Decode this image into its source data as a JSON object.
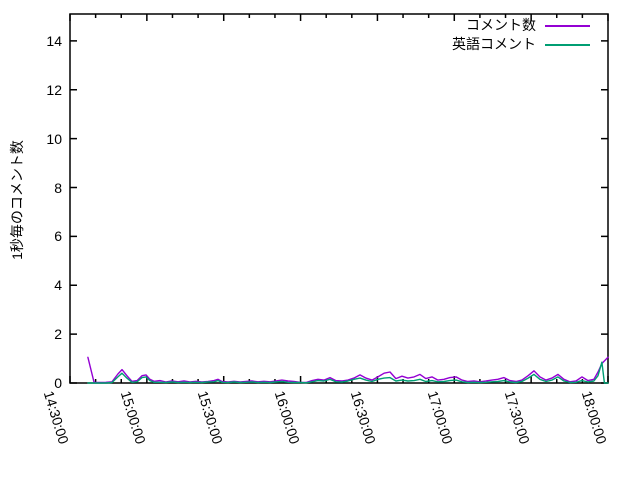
{
  "chart_data": {
    "type": "line",
    "title": "",
    "xlabel": "",
    "ylabel": "1秒毎のコメント数",
    "grid": false,
    "legend_position": "top-right-inside",
    "background_color": "#ffffff",
    "border_color": "#000000",
    "text_color": "#000000",
    "ylim": [
      0,
      15.1
    ],
    "yticks": [
      0,
      2,
      4,
      6,
      8,
      10,
      12,
      14
    ],
    "x_axis_unit": "time (HH:MM:SS)",
    "x_range_minutes": [
      0,
      210
    ],
    "xtick_minutes": [
      0,
      30,
      60,
      90,
      120,
      150,
      180,
      210
    ],
    "xtick_labels": [
      "14:30:00",
      "15:00:00",
      "15:30:00",
      "16:00:00",
      "16:30:00",
      "17:00:00",
      "17:30:00",
      "18:00:00"
    ],
    "x_minor_step_minutes": 10,
    "series": [
      {
        "name": "コメント数",
        "color": "#9400d3",
        "points_format": "[minutes after 14:30, comments per second]",
        "points": [
          [
            7,
            1.05
          ],
          [
            9.4,
            0.02
          ],
          [
            11.7,
            0.02
          ],
          [
            14,
            0.03
          ],
          [
            16.4,
            0.05
          ],
          [
            18.7,
            0.37
          ],
          [
            20.3,
            0.55
          ],
          [
            22.2,
            0.3
          ],
          [
            24.2,
            0.07
          ],
          [
            26.2,
            0.1
          ],
          [
            28.1,
            0.3
          ],
          [
            29.7,
            0.33
          ],
          [
            31.2,
            0.15
          ],
          [
            32.8,
            0.07
          ],
          [
            35.1,
            0.1
          ],
          [
            37.5,
            0.04
          ],
          [
            39.8,
            0.08
          ],
          [
            42.2,
            0.05
          ],
          [
            44.5,
            0.08
          ],
          [
            46.8,
            0.04
          ],
          [
            49.2,
            0.07
          ],
          [
            51.5,
            0.04
          ],
          [
            53.9,
            0.06
          ],
          [
            56.2,
            0.1
          ],
          [
            57.8,
            0.15
          ],
          [
            59.3,
            0.06
          ],
          [
            61.7,
            0.04
          ],
          [
            64,
            0.07
          ],
          [
            66.4,
            0.04
          ],
          [
            68.7,
            0.06
          ],
          [
            71,
            0.08
          ],
          [
            73.4,
            0.05
          ],
          [
            75.7,
            0.07
          ],
          [
            78.1,
            0.05
          ],
          [
            80.4,
            0.08
          ],
          [
            82.7,
            0.12
          ],
          [
            85.1,
            0.08
          ],
          [
            87.4,
            0.06
          ],
          [
            89.8,
            0.03
          ],
          [
            92.1,
            0.02
          ],
          [
            94.5,
            0.1
          ],
          [
            96.8,
            0.15
          ],
          [
            99.1,
            0.12
          ],
          [
            101.5,
            0.22
          ],
          [
            103.8,
            0.1
          ],
          [
            106.2,
            0.08
          ],
          [
            108.5,
            0.12
          ],
          [
            110.8,
            0.2
          ],
          [
            113.2,
            0.33
          ],
          [
            115.5,
            0.2
          ],
          [
            117.9,
            0.12
          ],
          [
            120.2,
            0.25
          ],
          [
            122.6,
            0.4
          ],
          [
            124.9,
            0.45
          ],
          [
            127.2,
            0.18
          ],
          [
            129.6,
            0.28
          ],
          [
            131.9,
            0.2
          ],
          [
            134.3,
            0.25
          ],
          [
            136.6,
            0.35
          ],
          [
            138.9,
            0.18
          ],
          [
            141.3,
            0.25
          ],
          [
            143.6,
            0.12
          ],
          [
            146,
            0.15
          ],
          [
            148.3,
            0.22
          ],
          [
            150.7,
            0.25
          ],
          [
            153,
            0.12
          ],
          [
            155.3,
            0.06
          ],
          [
            157.7,
            0.08
          ],
          [
            160,
            0.05
          ],
          [
            162.4,
            0.08
          ],
          [
            164.7,
            0.12
          ],
          [
            167,
            0.15
          ],
          [
            169.4,
            0.22
          ],
          [
            171.7,
            0.1
          ],
          [
            174.1,
            0.06
          ],
          [
            176.4,
            0.12
          ],
          [
            178.8,
            0.3
          ],
          [
            181.1,
            0.5
          ],
          [
            183.4,
            0.25
          ],
          [
            185.8,
            0.12
          ],
          [
            188.1,
            0.2
          ],
          [
            190.5,
            0.35
          ],
          [
            192.8,
            0.15
          ],
          [
            195.1,
            0.05
          ],
          [
            197.5,
            0.08
          ],
          [
            199.8,
            0.25
          ],
          [
            202.2,
            0.1
          ],
          [
            204.5,
            0.15
          ],
          [
            206.1,
            0.45
          ],
          [
            207.6,
            0.8
          ],
          [
            210,
            1.05
          ]
        ]
      },
      {
        "name": "英語コメント",
        "color": "#009e73",
        "points_format": "[minutes after 14:30, comments per second]",
        "points": [
          [
            7,
            0
          ],
          [
            9.4,
            0
          ],
          [
            11.7,
            0
          ],
          [
            14,
            0
          ],
          [
            16.4,
            0.02
          ],
          [
            18.7,
            0.25
          ],
          [
            20.3,
            0.4
          ],
          [
            22.2,
            0.2
          ],
          [
            24.2,
            0.03
          ],
          [
            26.2,
            0.05
          ],
          [
            28.1,
            0.22
          ],
          [
            29.7,
            0.25
          ],
          [
            31.2,
            0.1
          ],
          [
            32.8,
            0.03
          ],
          [
            35.1,
            0.03
          ],
          [
            37.5,
            0.02
          ],
          [
            39.8,
            0.04
          ],
          [
            42.2,
            0.02
          ],
          [
            44.5,
            0.03
          ],
          [
            46.8,
            0.02
          ],
          [
            49.2,
            0.03
          ],
          [
            51.5,
            0.02
          ],
          [
            53.9,
            0.04
          ],
          [
            56.2,
            0.05
          ],
          [
            57.8,
            0.1
          ],
          [
            59.3,
            0.03
          ],
          [
            61.7,
            0.02
          ],
          [
            64,
            0.04
          ],
          [
            66.4,
            0.02
          ],
          [
            68.7,
            0.03
          ],
          [
            71,
            0.04
          ],
          [
            73.4,
            0.02
          ],
          [
            75.7,
            0.03
          ],
          [
            78.1,
            0.02
          ],
          [
            80.4,
            0.04
          ],
          [
            82.7,
            0.06
          ],
          [
            85.1,
            0.03
          ],
          [
            87.4,
            0.02
          ],
          [
            89.8,
            0.02
          ],
          [
            92.1,
            0.01
          ],
          [
            94.5,
            0.05
          ],
          [
            96.8,
            0.1
          ],
          [
            99.1,
            0.08
          ],
          [
            101.5,
            0.15
          ],
          [
            103.8,
            0.05
          ],
          [
            106.2,
            0.04
          ],
          [
            108.5,
            0.08
          ],
          [
            110.8,
            0.15
          ],
          [
            113.2,
            0.2
          ],
          [
            115.5,
            0.12
          ],
          [
            117.9,
            0.06
          ],
          [
            120.2,
            0.15
          ],
          [
            122.6,
            0.2
          ],
          [
            124.9,
            0.22
          ],
          [
            127.2,
            0.08
          ],
          [
            129.6,
            0.12
          ],
          [
            131.9,
            0.08
          ],
          [
            134.3,
            0.1
          ],
          [
            136.6,
            0.15
          ],
          [
            138.9,
            0.06
          ],
          [
            141.3,
            0.1
          ],
          [
            143.6,
            0.05
          ],
          [
            146,
            0.06
          ],
          [
            148.3,
            0.1
          ],
          [
            150.7,
            0.12
          ],
          [
            153,
            0.05
          ],
          [
            155.3,
            0.02
          ],
          [
            157.7,
            0.03
          ],
          [
            160,
            0.02
          ],
          [
            162.4,
            0.03
          ],
          [
            164.7,
            0.05
          ],
          [
            167,
            0.06
          ],
          [
            169.4,
            0.1
          ],
          [
            171.7,
            0.04
          ],
          [
            174.1,
            0.02
          ],
          [
            176.4,
            0.06
          ],
          [
            178.8,
            0.2
          ],
          [
            181.1,
            0.35
          ],
          [
            183.4,
            0.15
          ],
          [
            185.8,
            0.06
          ],
          [
            188.1,
            0.12
          ],
          [
            190.5,
            0.25
          ],
          [
            192.8,
            0.08
          ],
          [
            195.1,
            0.02
          ],
          [
            197.5,
            0.03
          ],
          [
            199.8,
            0.1
          ],
          [
            202.2,
            0.04
          ],
          [
            204.5,
            0.08
          ],
          [
            206.1,
            0.3
          ],
          [
            207.6,
            0.85
          ],
          [
            208.6,
            0
          ],
          [
            210,
            0
          ]
        ]
      }
    ]
  }
}
